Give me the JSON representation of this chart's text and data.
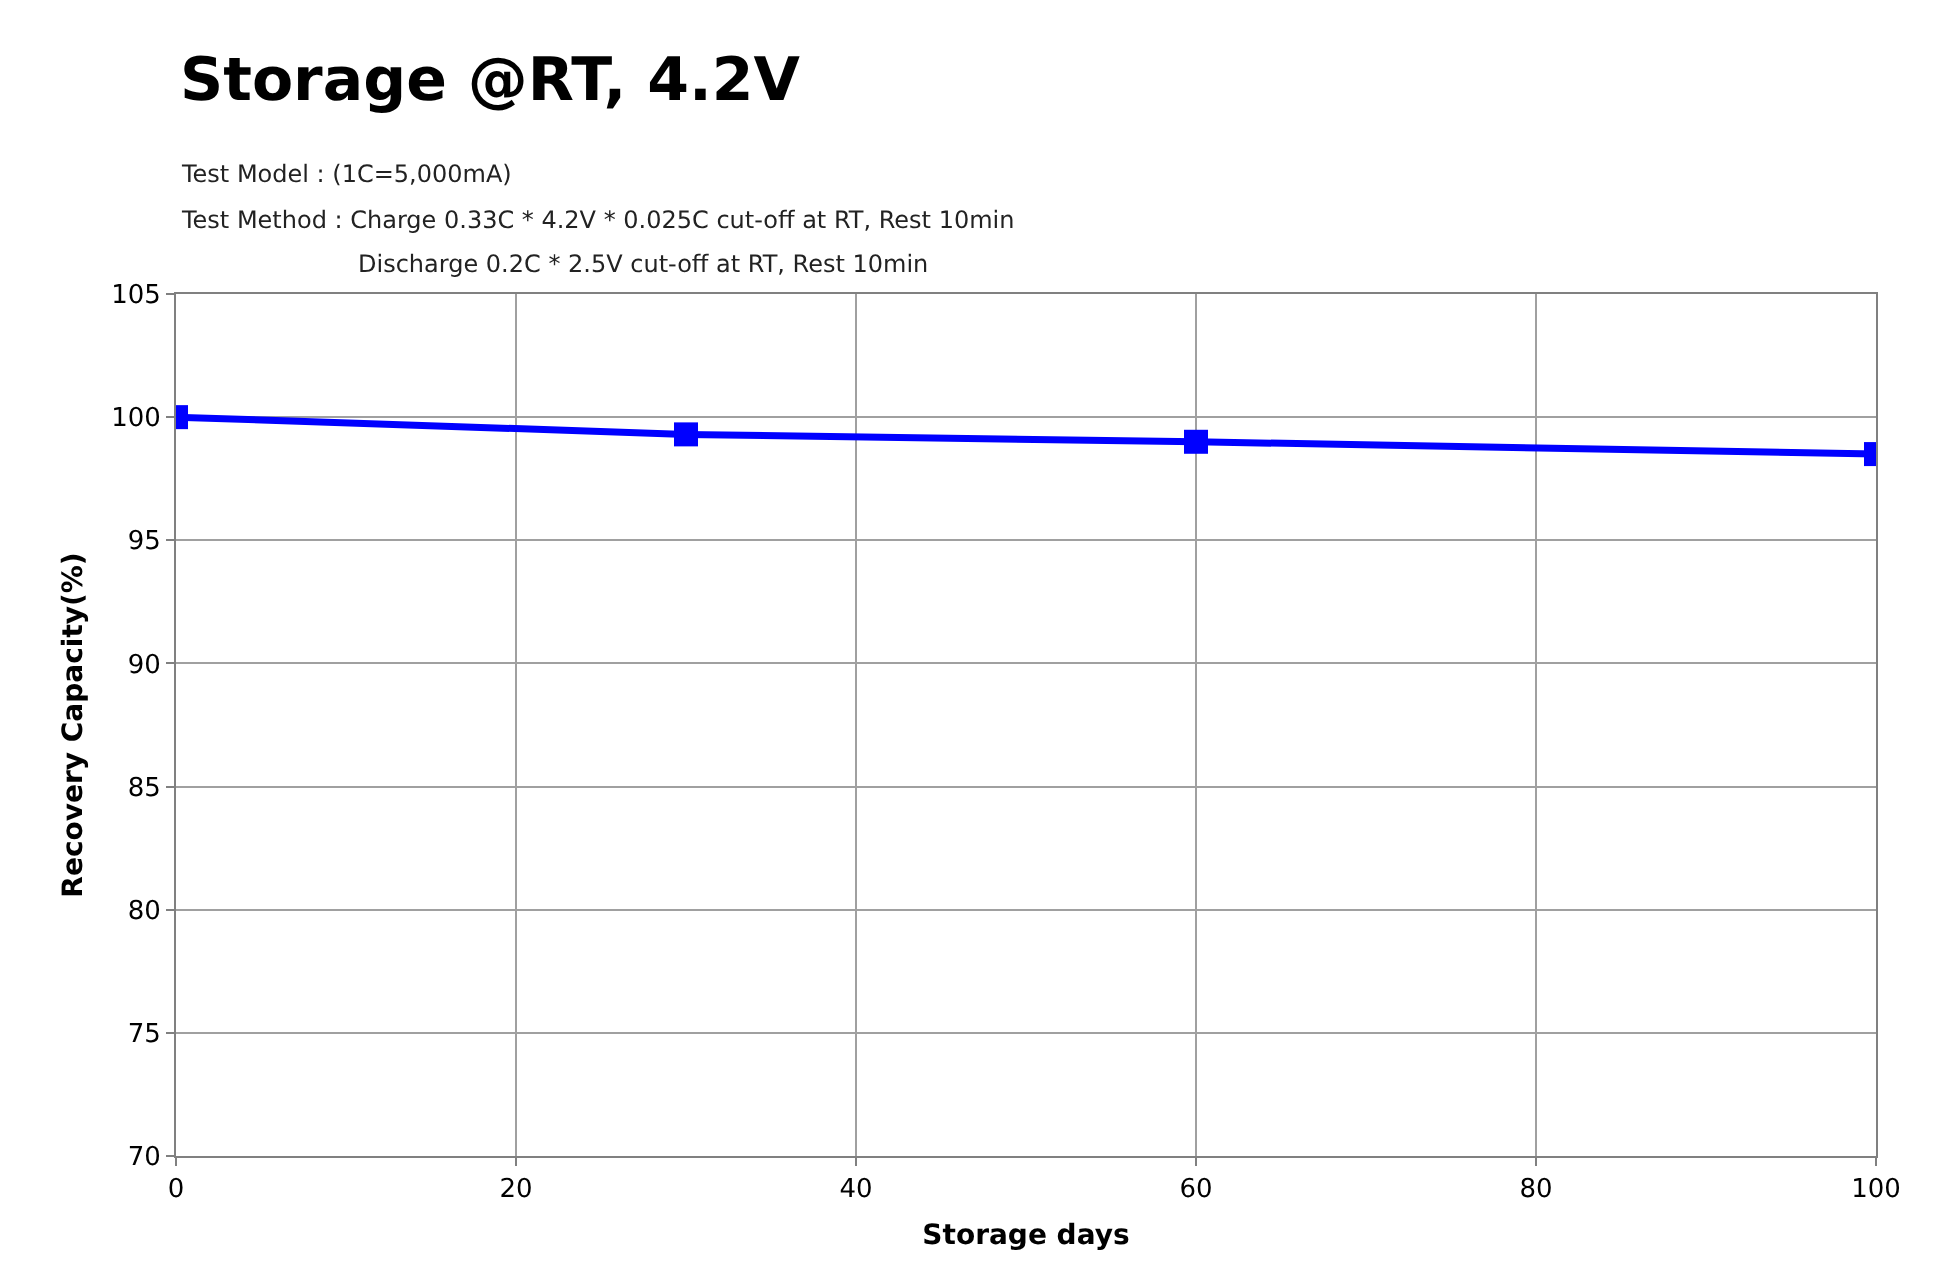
{
  "chart_data": {
    "type": "line",
    "title": "Storage @RT, 4.2V",
    "annotations": [
      "Test Model : (1C=5,000mA)",
      "Test Method : Charge 0.33C * 4.2V * 0.025C cut-off at RT, Rest 10min",
      "Discharge 0.2C * 2.5V cut-off at RT, Rest 10min"
    ],
    "xlabel": "Storage days",
    "ylabel": "Recovery Capacity(%)",
    "x": [
      0,
      30,
      60,
      100
    ],
    "series": [
      {
        "color": "#0000ff",
        "values": [
          100,
          99.3,
          99.0,
          98.5
        ]
      }
    ],
    "xlim": [
      0,
      100
    ],
    "xticks": [
      0,
      20,
      40,
      60,
      80,
      100
    ],
    "ylim": [
      70,
      105
    ],
    "yticks": [
      70,
      75,
      80,
      85,
      90,
      95,
      100,
      105
    ],
    "grid": true,
    "marker": "square",
    "line_style": "solid"
  }
}
